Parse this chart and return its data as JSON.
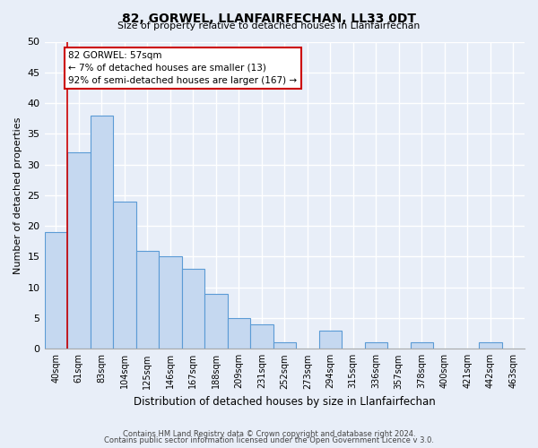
{
  "title": "82, GORWEL, LLANFAIRFECHAN, LL33 0DT",
  "subtitle": "Size of property relative to detached houses in Llanfairfechan",
  "xlabel": "Distribution of detached houses by size in Llanfairfechan",
  "ylabel": "Number of detached properties",
  "bin_labels": [
    "40sqm",
    "61sqm",
    "83sqm",
    "104sqm",
    "125sqm",
    "146sqm",
    "167sqm",
    "188sqm",
    "209sqm",
    "231sqm",
    "252sqm",
    "273sqm",
    "294sqm",
    "315sqm",
    "336sqm",
    "357sqm",
    "378sqm",
    "400sqm",
    "421sqm",
    "442sqm",
    "463sqm"
  ],
  "bar_values": [
    19,
    32,
    38,
    24,
    16,
    15,
    13,
    9,
    5,
    4,
    1,
    0,
    3,
    0,
    1,
    0,
    1,
    0,
    0,
    1,
    0
  ],
  "bar_color": "#c5d8f0",
  "bar_edge_color": "#5b9bd5",
  "marker_line_color": "#cc0000",
  "annotation_text": "82 GORWEL: 57sqm\n← 7% of detached houses are smaller (13)\n92% of semi-detached houses are larger (167) →",
  "annotation_box_color": "#ffffff",
  "annotation_box_edge": "#cc0000",
  "ylim": [
    0,
    50
  ],
  "yticks": [
    0,
    5,
    10,
    15,
    20,
    25,
    30,
    35,
    40,
    45,
    50
  ],
  "footer_line1": "Contains HM Land Registry data © Crown copyright and database right 2024.",
  "footer_line2": "Contains public sector information licensed under the Open Government Licence v 3.0.",
  "bg_color": "#e8eef8",
  "plot_bg_color": "#e8eef8",
  "grid_color": "#ffffff"
}
